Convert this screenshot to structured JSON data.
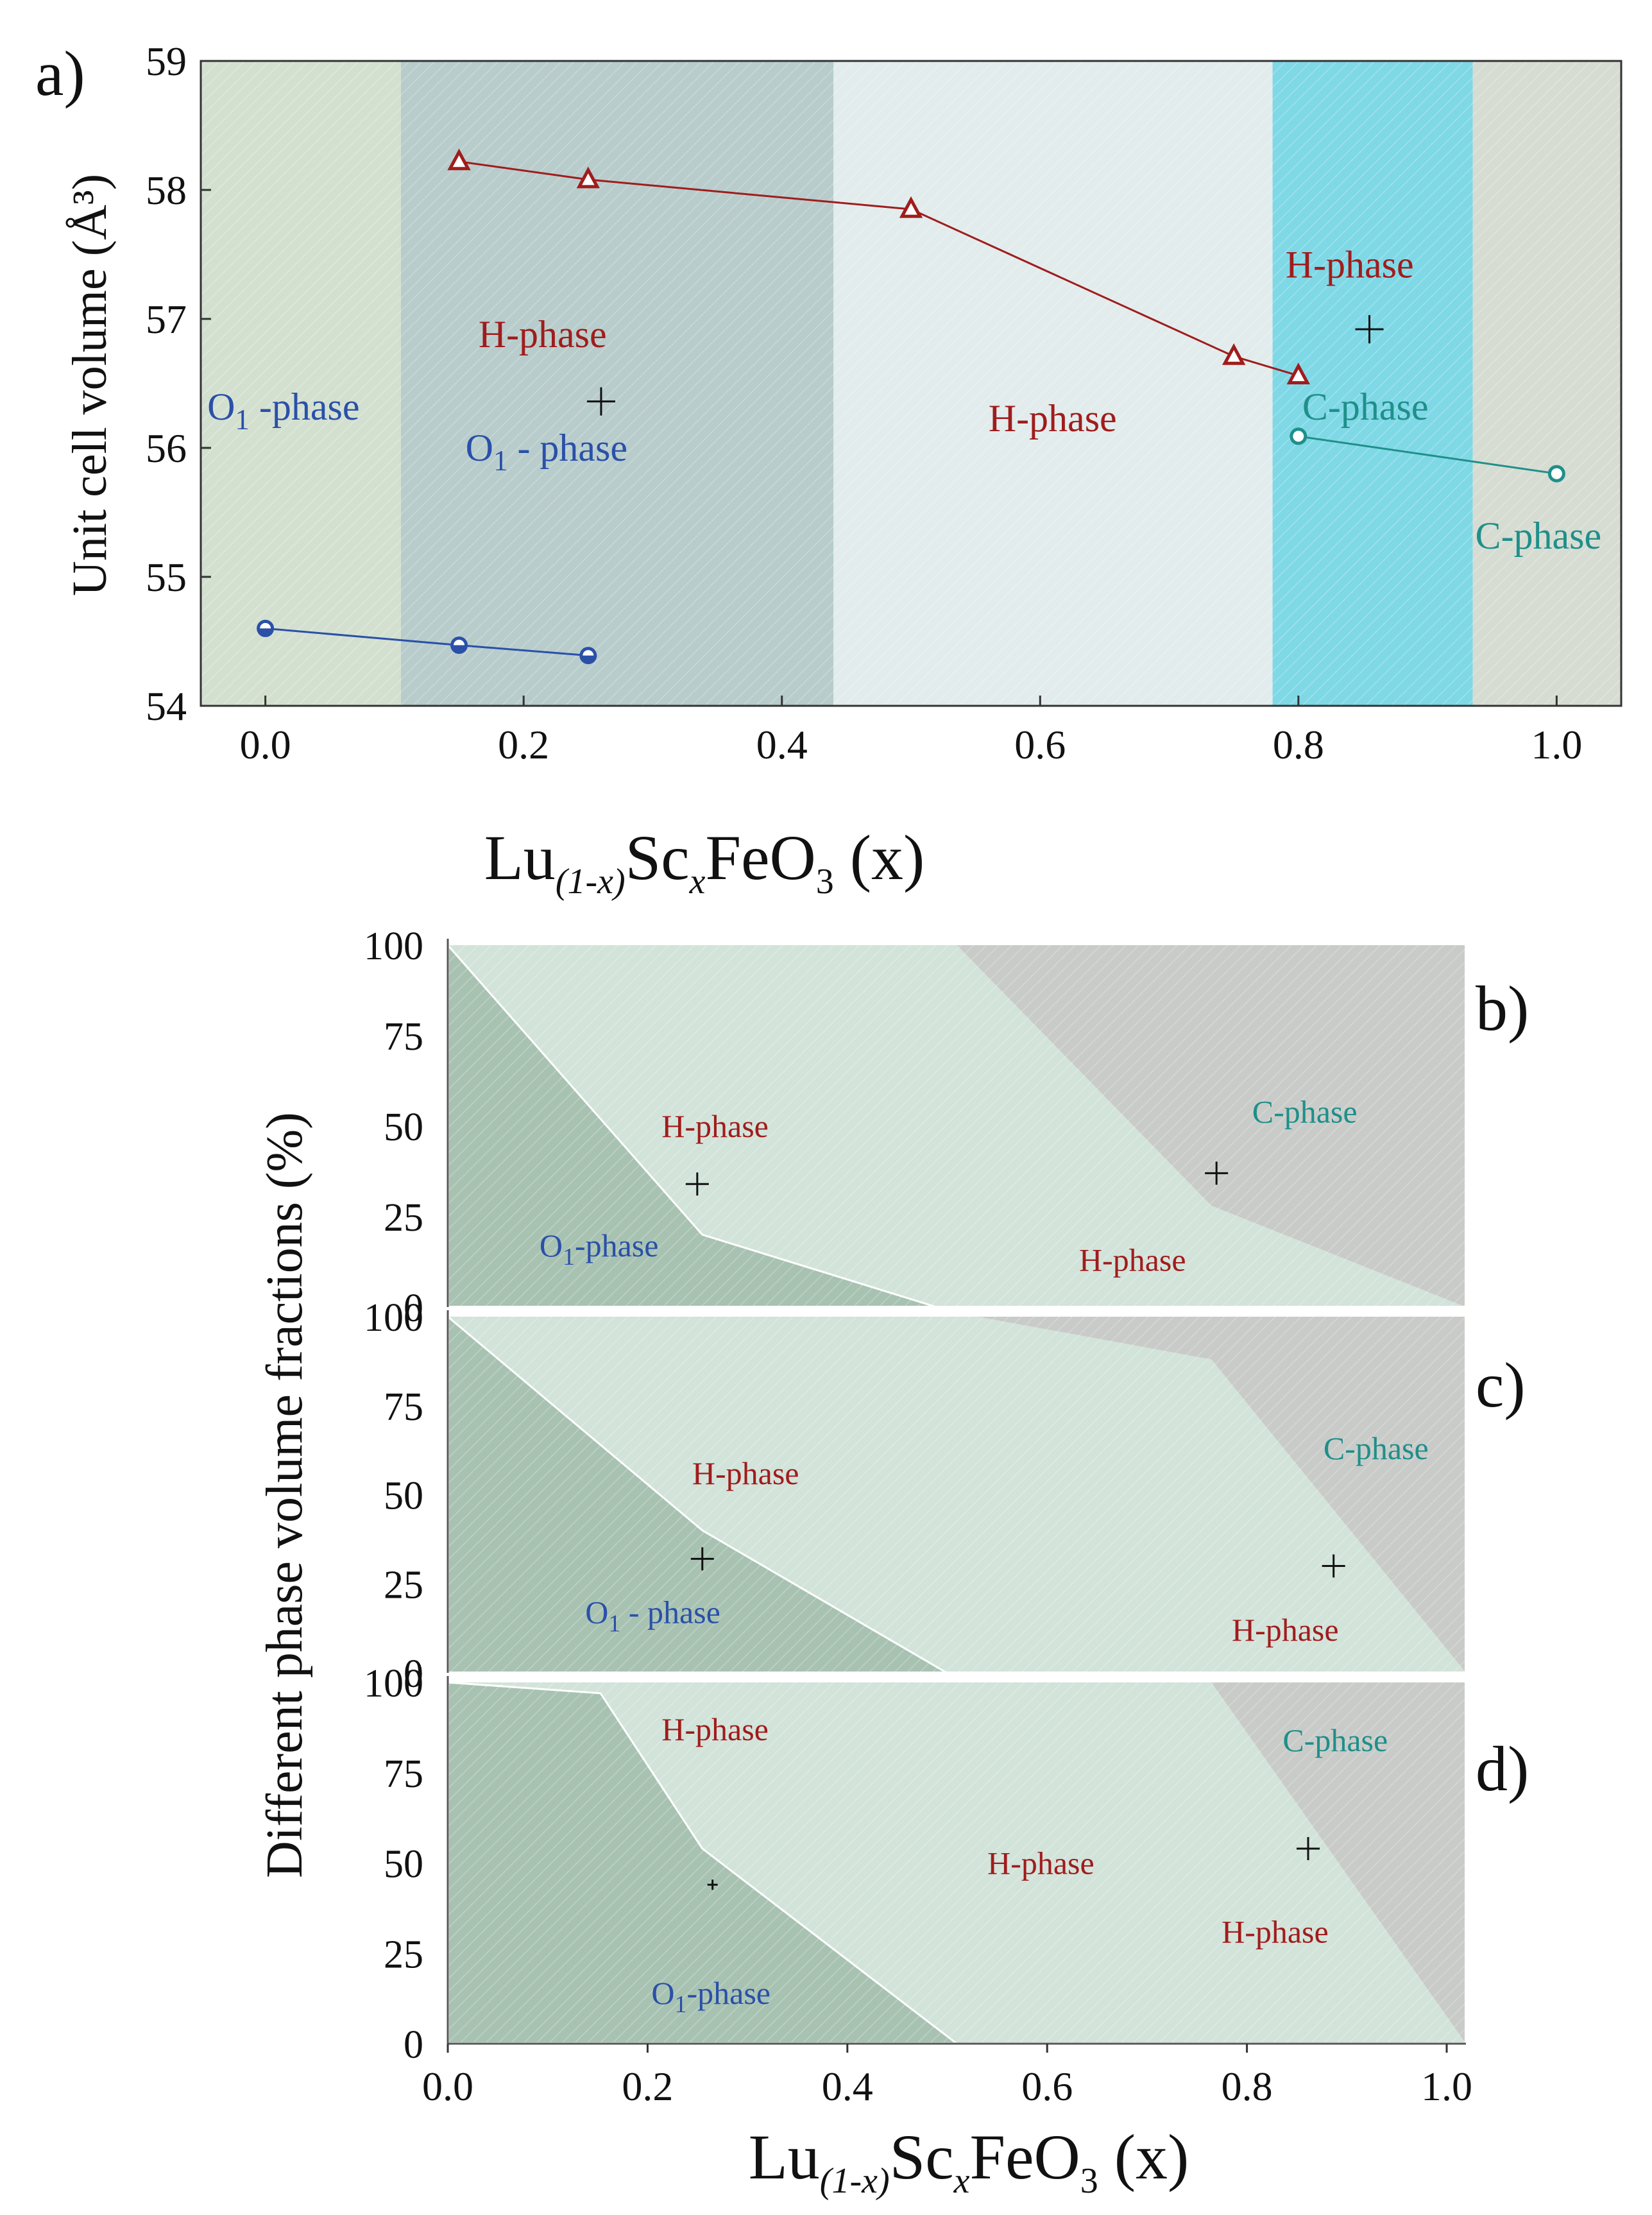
{
  "figure": {
    "x_label_main": "Lu",
    "x_label_sub1": "(1-x)",
    "x_label_mid": "Sc",
    "x_label_sub2": "x",
    "x_label_end": "FeO",
    "x_label_sub3": "3",
    "x_label_var": "(x)"
  },
  "chart_data": [
    {
      "id": "a",
      "type": "line",
      "panel_label": "a)",
      "ylabel": "Unit cell volume (Å³)",
      "xlim": [
        -0.05,
        1.05
      ],
      "ylim": [
        54,
        59
      ],
      "xticks": [
        "0.0",
        "0.2",
        "0.4",
        "0.6",
        "0.8",
        "1.0"
      ],
      "xtick_values": [
        0,
        0.2,
        0.4,
        0.6,
        0.8,
        1.0
      ],
      "yticks": [
        "54",
        "55",
        "56",
        "57",
        "58",
        "59"
      ],
      "ytick_values": [
        54,
        55,
        56,
        57,
        58,
        59
      ],
      "regions": [
        {
          "from": -0.05,
          "to": 0.105,
          "color": "#d3e0d0"
        },
        {
          "from": 0.105,
          "to": 0.44,
          "color": "#b7cccb"
        },
        {
          "from": 0.44,
          "to": 0.78,
          "color": "#e2ecec"
        },
        {
          "from": 0.78,
          "to": 0.935,
          "color": "#7fd8e6"
        },
        {
          "from": 0.935,
          "to": 1.05,
          "color": "#d6dcd2"
        }
      ],
      "series": [
        {
          "marker": "triangle",
          "color": "#a01c1c",
          "x": [
            0.15,
            0.25,
            0.5,
            0.75,
            0.8
          ],
          "y": [
            58.22,
            58.08,
            57.85,
            56.71,
            56.56
          ]
        },
        {
          "marker": "circle-filled",
          "color": "#2a50a8",
          "x": [
            0.0,
            0.15,
            0.25
          ],
          "y": [
            54.6,
            54.47,
            54.39
          ]
        },
        {
          "marker": "circle-open",
          "color": "#1f8f8a",
          "x": [
            0.8,
            1.0
          ],
          "y": [
            56.09,
            55.8
          ]
        }
      ],
      "annotations": [
        {
          "text": "O",
          "sub": "1",
          "tail": " -phase",
          "x": -0.045,
          "y": 56.22,
          "color": "#2a50a8"
        },
        {
          "text": "H-phase",
          "x": 0.165,
          "y": 56.78,
          "color": "#a01c1c"
        },
        {
          "text": "O",
          "sub": "1",
          "tail": " - phase",
          "x": 0.155,
          "y": 55.9,
          "color": "#2a50a8"
        },
        {
          "text": "H-phase",
          "x": 0.56,
          "y": 56.13,
          "color": "#a01c1c"
        },
        {
          "text": "H-phase",
          "x": 0.79,
          "y": 57.32,
          "color": "#a01c1c"
        },
        {
          "text": "C-phase",
          "x": 0.803,
          "y": 56.22,
          "color": "#1f8f8a"
        },
        {
          "text": "C-phase",
          "x": 0.937,
          "y": 55.22,
          "color": "#1f8f8a"
        }
      ],
      "crosses": [
        {
          "x": 0.26,
          "y": 56.36
        },
        {
          "x": 0.855,
          "y": 56.92
        }
      ]
    },
    {
      "id": "b",
      "type": "area",
      "panel_label": "b)",
      "xlim": [
        0,
        1
      ],
      "ylim": [
        0,
        100
      ],
      "yticks": [
        "0",
        "25",
        "50",
        "75",
        "100"
      ],
      "ytick_values": [
        0,
        25,
        50,
        75,
        100
      ],
      "regions": [
        {
          "polygon": [
            [
              0,
              0
            ],
            [
              0,
              100
            ],
            [
              0.25,
              20
            ],
            [
              0.48,
              0
            ]
          ],
          "color": "#a8c2b2"
        },
        {
          "polygon": [
            [
              0,
              100
            ],
            [
              0.5,
              100
            ],
            [
              0.75,
              28
            ],
            [
              1.0,
              0
            ],
            [
              0.48,
              0
            ],
            [
              0.25,
              20
            ]
          ],
          "color": "#d2e3da"
        },
        {
          "polygon": [
            [
              0.5,
              100
            ],
            [
              1,
              100
            ],
            [
              1,
              0
            ],
            [
              0.75,
              28
            ]
          ],
          "color": "#c9cbc8"
        }
      ],
      "annotations": [
        {
          "text": "H-phase",
          "x": 0.21,
          "y": 47,
          "color": "#a01c1c"
        },
        {
          "text": "O",
          "sub": "1",
          "tail": "-phase",
          "x": 0.09,
          "y": 14,
          "color": "#2a50a8"
        },
        {
          "text": "C-phase",
          "x": 0.79,
          "y": 51,
          "color": "#1f8f8a"
        },
        {
          "text": "H-phase",
          "x": 0.62,
          "y": 10,
          "color": "#a01c1c"
        }
      ],
      "crosses": [
        {
          "x": 0.245,
          "y": 34
        },
        {
          "x": 0.755,
          "y": 37
        }
      ]
    },
    {
      "id": "c",
      "type": "area",
      "panel_label": "c)",
      "xlim": [
        0,
        1
      ],
      "ylim": [
        0,
        100
      ],
      "yticks": [
        "0",
        "25",
        "50",
        "75",
        "100"
      ],
      "ytick_values": [
        0,
        25,
        50,
        75,
        100
      ],
      "regions": [
        {
          "polygon": [
            [
              0,
              0
            ],
            [
              0,
              100
            ],
            [
              0.25,
              40
            ],
            [
              0.49,
              0
            ]
          ],
          "color": "#a8c2b2"
        },
        {
          "polygon": [
            [
              0,
              100
            ],
            [
              0.52,
              100
            ],
            [
              0.75,
              88
            ],
            [
              1.0,
              0
            ],
            [
              0.49,
              0
            ],
            [
              0.25,
              40
            ]
          ],
          "color": "#d2e3da"
        },
        {
          "polygon": [
            [
              0.52,
              100
            ],
            [
              1,
              100
            ],
            [
              1,
              0
            ],
            [
              0.75,
              88
            ]
          ],
          "color": "#c9cbc8"
        }
      ],
      "annotations": [
        {
          "text": "H-phase",
          "x": 0.24,
          "y": 53,
          "color": "#a01c1c"
        },
        {
          "text": "O",
          "sub": "1",
          "tail": " - phase",
          "x": 0.135,
          "y": 14,
          "color": "#2a50a8"
        },
        {
          "text": "C-phase",
          "x": 0.86,
          "y": 60,
          "color": "#1f8f8a"
        },
        {
          "text": "H-phase",
          "x": 0.77,
          "y": 9,
          "color": "#a01c1c"
        }
      ],
      "crosses": [
        {
          "x": 0.25,
          "y": 32
        },
        {
          "x": 0.87,
          "y": 30
        }
      ]
    },
    {
      "id": "d",
      "type": "area",
      "panel_label": "d)",
      "xlim": [
        0,
        1
      ],
      "ylim": [
        0,
        100
      ],
      "yticks": [
        "0",
        "25",
        "50",
        "75",
        "100"
      ],
      "ytick_values": [
        0,
        25,
        50,
        75,
        100
      ],
      "regions": [
        {
          "polygon": [
            [
              0,
              0
            ],
            [
              0,
              100
            ],
            [
              0.15,
              97
            ],
            [
              0.25,
              54
            ],
            [
              0.5,
              0
            ]
          ],
          "color": "#a8c2b2"
        },
        {
          "polygon": [
            [
              0.15,
              97
            ],
            [
              0,
              100
            ],
            [
              0.75,
              100
            ],
            [
              1.0,
              0
            ],
            [
              0.5,
              0
            ],
            [
              0.25,
              54
            ]
          ],
          "color": "#d2e3da"
        },
        {
          "polygon": [
            [
              0.75,
              100
            ],
            [
              1,
              100
            ],
            [
              1,
              0
            ]
          ],
          "color": "#c9cbc8"
        }
      ],
      "annotations": [
        {
          "text": "H-phase",
          "x": 0.21,
          "y": 84,
          "color": "#a01c1c"
        },
        {
          "text": "H-phase",
          "x": 0.53,
          "y": 47,
          "color": "#a01c1c"
        },
        {
          "text": "C-phase",
          "x": 0.82,
          "y": 81,
          "color": "#1f8f8a"
        },
        {
          "text": "H-phase",
          "x": 0.76,
          "y": 28,
          "color": "#a01c1c"
        },
        {
          "text": "O",
          "sub": "1",
          "tail": "-phase",
          "x": 0.2,
          "y": 11,
          "color": "#2a50a8"
        }
      ],
      "crosses": [
        {
          "x": 0.26,
          "y": 44
        },
        {
          "x": 0.845,
          "y": 54
        }
      ]
    },
    {
      "id": "bcd-axes",
      "type": "area",
      "ylabel": "Different phase  volume fractions (%)",
      "xticks": [
        "0.0",
        "0.2",
        "0.4",
        "0.6",
        "0.8",
        "1.0"
      ],
      "xtick_values": [
        0,
        0.2,
        0.4,
        0.6,
        0.8,
        1.0
      ]
    }
  ]
}
